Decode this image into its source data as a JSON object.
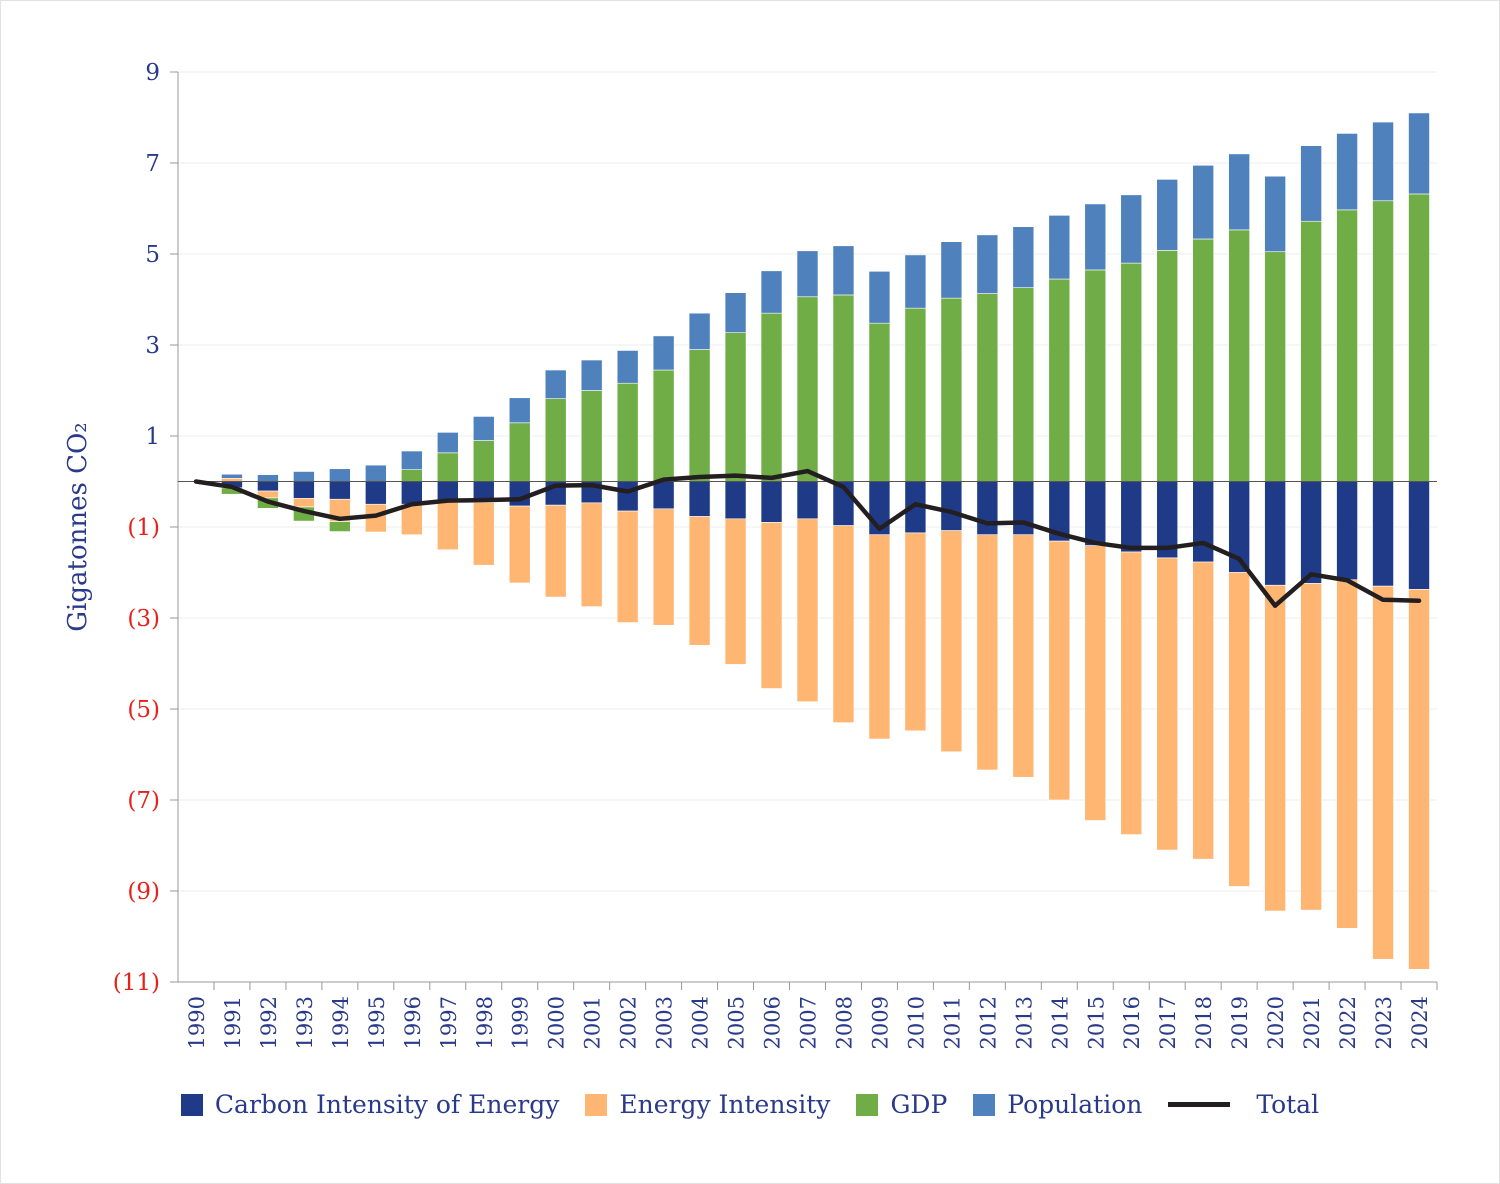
{
  "chart_data": {
    "type": "bar",
    "stacked": true,
    "ylabel": "Gigatonnes CO₂",
    "ylim": [
      -11,
      9
    ],
    "yticks": [
      9,
      7,
      5,
      3,
      1,
      -1,
      -3,
      -5,
      -7,
      -9,
      -11
    ],
    "ytick_labels": [
      "9",
      "7",
      "5",
      "3",
      "1",
      "(1)",
      "(3)",
      "(5)",
      "(7)",
      "(9)",
      "(11)"
    ],
    "grid": true,
    "legend": "bottom",
    "categories": [
      "1990",
      "1991",
      "1992",
      "1993",
      "1994",
      "1995",
      "1996",
      "1997",
      "1998",
      "1999",
      "2000",
      "2001",
      "2002",
      "2003",
      "2004",
      "2005",
      "2006",
      "2007",
      "2008",
      "2009",
      "2010",
      "2011",
      "2012",
      "2013",
      "2014",
      "2015",
      "2016",
      "2017",
      "2018",
      "2019",
      "2020",
      "2021",
      "2022",
      "2023",
      "2024"
    ],
    "series": [
      {
        "name": "Carbon Intensity of Energy",
        "type": "bar",
        "color": "#1f3a87",
        "values": [
          0,
          -0.14,
          -0.21,
          -0.37,
          -0.39,
          -0.5,
          -0.5,
          -0.46,
          -0.46,
          -0.54,
          -0.52,
          -0.47,
          -0.65,
          -0.6,
          -0.77,
          -0.82,
          -0.9,
          -0.82,
          -0.97,
          -1.17,
          -1.13,
          -1.08,
          -1.17,
          -1.17,
          -1.31,
          -1.41,
          -1.55,
          -1.68,
          -1.77,
          -2.0,
          -2.28,
          -2.24,
          -2.16,
          -2.3,
          -2.37
        ]
      },
      {
        "name": "Energy Intensity",
        "type": "bar",
        "color": "#ffb673",
        "values": [
          0,
          0.07,
          -0.15,
          -0.19,
          -0.49,
          -0.61,
          -0.67,
          -1.04,
          -1.38,
          -1.69,
          -2.02,
          -2.28,
          -2.45,
          -2.56,
          -2.83,
          -3.2,
          -3.65,
          -4.02,
          -4.33,
          -4.49,
          -4.35,
          -4.86,
          -5.17,
          -5.33,
          -5.69,
          -6.04,
          -6.21,
          -6.42,
          -6.53,
          -6.9,
          -7.16,
          -7.18,
          -7.66,
          -8.2,
          -8.35
        ]
      },
      {
        "name": "GDP",
        "type": "bar",
        "color": "#70ad47",
        "values": [
          0,
          -0.14,
          -0.23,
          -0.31,
          -0.22,
          0,
          0.26,
          0.63,
          0.9,
          1.29,
          1.82,
          2.0,
          2.16,
          2.45,
          2.9,
          3.27,
          3.7,
          4.06,
          4.1,
          3.48,
          3.81,
          4.03,
          4.13,
          4.26,
          4.45,
          4.65,
          4.8,
          5.08,
          5.33,
          5.53,
          5.05,
          5.72,
          5.97,
          6.17,
          6.32
        ]
      },
      {
        "name": "Population",
        "type": "bar",
        "color": "#4f81bd",
        "values": [
          0,
          0.09,
          0.15,
          0.22,
          0.28,
          0.36,
          0.41,
          0.45,
          0.53,
          0.55,
          0.63,
          0.67,
          0.72,
          0.75,
          0.8,
          0.88,
          0.93,
          1.01,
          1.08,
          1.14,
          1.17,
          1.24,
          1.29,
          1.34,
          1.4,
          1.45,
          1.5,
          1.56,
          1.62,
          1.67,
          1.66,
          1.66,
          1.68,
          1.73,
          1.78
        ]
      },
      {
        "name": "Total",
        "type": "line",
        "color": "#231f20",
        "values": [
          0,
          -0.12,
          -0.44,
          -0.65,
          -0.82,
          -0.75,
          -0.5,
          -0.42,
          -0.41,
          -0.39,
          -0.09,
          -0.08,
          -0.22,
          0.04,
          0.1,
          0.13,
          0.08,
          0.23,
          -0.12,
          -1.04,
          -0.5,
          -0.67,
          -0.92,
          -0.9,
          -1.15,
          -1.35,
          -1.46,
          -1.46,
          -1.35,
          -1.7,
          -2.73,
          -2.04,
          -2.17,
          -2.6,
          -2.62
        ]
      }
    ],
    "colors": {
      "positive_tick": "#2a3a8a",
      "negative_tick": "#e8201a",
      "axis_label": "#2a3a8a"
    }
  }
}
